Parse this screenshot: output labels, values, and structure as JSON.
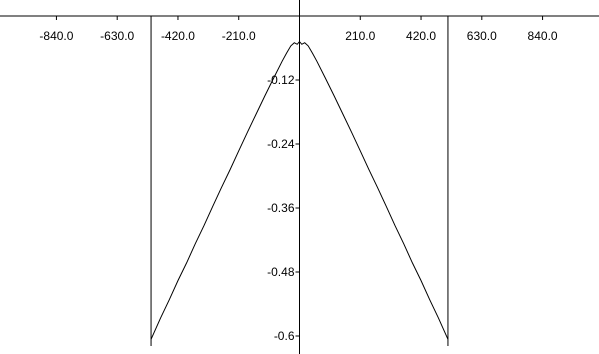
{
  "chart_data": {
    "type": "line",
    "title": "",
    "xlabel": "",
    "ylabel": "",
    "xlim": [
      -1035,
      1035
    ],
    "ylim": [
      -0.63,
      0.015
    ],
    "grid": false,
    "x_ticks": [
      {
        "value": -840,
        "label": "-840.0"
      },
      {
        "value": -630,
        "label": "-630.0"
      },
      {
        "value": -420,
        "label": "-420.0"
      },
      {
        "value": -210,
        "label": "-210.0"
      },
      {
        "value": 210,
        "label": "210.0"
      },
      {
        "value": 420,
        "label": "420.0"
      },
      {
        "value": 630,
        "label": "630.0"
      },
      {
        "value": 840,
        "label": "840.0"
      }
    ],
    "y_ticks": [
      {
        "value": -0.12,
        "label": "-0.12"
      },
      {
        "value": -0.24,
        "label": "-0.24"
      },
      {
        "value": -0.36,
        "label": "-0.36"
      },
      {
        "value": -0.48,
        "label": "-0.48"
      },
      {
        "value": -0.6,
        "label": "-0.6"
      }
    ],
    "vertical_lines": [
      -513,
      513
    ],
    "series": [
      {
        "color": "#000000",
        "x": [
          -513,
          -480,
          -450,
          -420,
          -390,
          -360,
          -330,
          -300,
          -270,
          -240,
          -210,
          -180,
          -150,
          -120,
          -90,
          -60,
          -45,
          -30,
          -18,
          -8,
          0,
          8,
          18,
          30,
          45,
          60,
          90,
          120,
          150,
          180,
          210,
          240,
          270,
          300,
          330,
          360,
          390,
          420,
          450,
          480,
          513
        ],
        "y": [
          -0.606,
          -0.566,
          -0.532,
          -0.496,
          -0.463,
          -0.427,
          -0.393,
          -0.357,
          -0.322,
          -0.288,
          -0.253,
          -0.218,
          -0.184,
          -0.15,
          -0.117,
          -0.085,
          -0.07,
          -0.056,
          -0.05,
          -0.053,
          -0.048,
          -0.053,
          -0.05,
          -0.056,
          -0.07,
          -0.085,
          -0.117,
          -0.15,
          -0.184,
          -0.218,
          -0.253,
          -0.288,
          -0.322,
          -0.357,
          -0.393,
          -0.427,
          -0.463,
          -0.496,
          -0.532,
          -0.566,
          -0.606
        ]
      }
    ]
  }
}
